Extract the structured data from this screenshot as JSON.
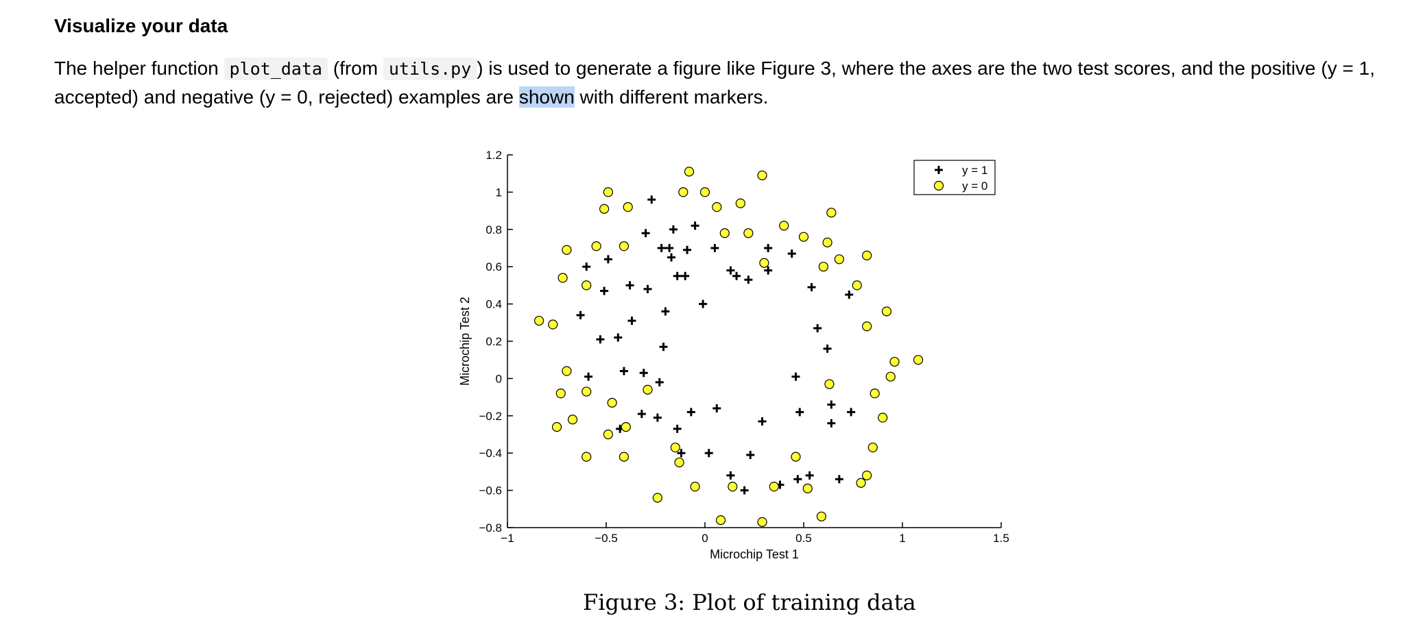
{
  "section_title": "Visualize your data",
  "paragraph": {
    "t1": "The helper function",
    "code1": "plot_data",
    "t2": "(from",
    "code2": "utils.py",
    "t3": ") is used to generate a figure like Figure 3, where the axes are the two test scores, and the positive (y = 1,",
    "t4": "accepted) and negative (y = 0, rejected) examples are",
    "selected_word": "shown",
    "t5": "with different markers."
  },
  "caption": "Figure 3: Plot of training data",
  "colors": {
    "negative_fill": "#ffff33",
    "selection": "#bcd6f5",
    "code_bg": "#f2f2f2"
  },
  "chart_data": {
    "type": "scatter",
    "title": "",
    "xlabel": "Microchip Test 1",
    "ylabel": "Microchip Test 2",
    "xlim": [
      -1,
      1.5
    ],
    "ylim": [
      -0.8,
      1.2
    ],
    "xticks": [
      -1,
      -0.5,
      0,
      0.5,
      1,
      1.5
    ],
    "xtick_labels": [
      "−1",
      "−0.5",
      "0",
      "0.5",
      "1",
      "1.5"
    ],
    "yticks": [
      -0.8,
      -0.6,
      -0.4,
      -0.2,
      0,
      0.2,
      0.4,
      0.6,
      0.8,
      1,
      1.2
    ],
    "ytick_labels": [
      "−0.8",
      "−0.6",
      "−0.4",
      "−0.2",
      "0",
      "0.2",
      "0.4",
      "0.6",
      "0.8",
      "1",
      "1.2"
    ],
    "grid": false,
    "legend": "top-right",
    "series": [
      {
        "name": "y = 1",
        "marker": "plus",
        "points": [
          [
            -0.27,
            0.96
          ],
          [
            -0.3,
            0.78
          ],
          [
            -0.16,
            0.8
          ],
          [
            -0.05,
            0.82
          ],
          [
            -0.22,
            0.7
          ],
          [
            -0.18,
            0.7
          ],
          [
            -0.09,
            0.69
          ],
          [
            -0.17,
            0.65
          ],
          [
            0.05,
            0.7
          ],
          [
            0.32,
            0.7
          ],
          [
            0.44,
            0.67
          ],
          [
            -0.49,
            0.64
          ],
          [
            -0.6,
            0.6
          ],
          [
            -0.14,
            0.55
          ],
          [
            -0.1,
            0.55
          ],
          [
            0.13,
            0.58
          ],
          [
            0.16,
            0.55
          ],
          [
            0.22,
            0.53
          ],
          [
            0.32,
            0.58
          ],
          [
            -0.38,
            0.5
          ],
          [
            -0.51,
            0.47
          ],
          [
            -0.29,
            0.48
          ],
          [
            0.54,
            0.49
          ],
          [
            0.73,
            0.45
          ],
          [
            -0.01,
            0.4
          ],
          [
            -0.2,
            0.36
          ],
          [
            -0.63,
            0.34
          ],
          [
            -0.37,
            0.31
          ],
          [
            0.57,
            0.27
          ],
          [
            -0.53,
            0.21
          ],
          [
            -0.44,
            0.22
          ],
          [
            -0.21,
            0.17
          ],
          [
            0.62,
            0.16
          ],
          [
            -0.59,
            0.01
          ],
          [
            -0.41,
            0.04
          ],
          [
            -0.31,
            0.03
          ],
          [
            -0.23,
            -0.02
          ],
          [
            0.46,
            0.01
          ],
          [
            0.64,
            -0.14
          ],
          [
            -0.32,
            -0.19
          ],
          [
            -0.24,
            -0.21
          ],
          [
            -0.07,
            -0.18
          ],
          [
            0.06,
            -0.16
          ],
          [
            0.48,
            -0.18
          ],
          [
            0.74,
            -0.18
          ],
          [
            0.29,
            -0.23
          ],
          [
            0.64,
            -0.24
          ],
          [
            -0.43,
            -0.27
          ],
          [
            -0.14,
            -0.27
          ],
          [
            -0.12,
            -0.4
          ],
          [
            0.02,
            -0.4
          ],
          [
            0.23,
            -0.41
          ],
          [
            0.13,
            -0.52
          ],
          [
            0.47,
            -0.54
          ],
          [
            0.53,
            -0.52
          ],
          [
            0.68,
            -0.54
          ],
          [
            0.2,
            -0.6
          ],
          [
            0.38,
            -0.57
          ]
        ]
      },
      {
        "name": "y = 0",
        "marker": "circle",
        "points": [
          [
            -0.08,
            1.11
          ],
          [
            0.29,
            1.09
          ],
          [
            -0.49,
            1.0
          ],
          [
            -0.11,
            1.0
          ],
          [
            0,
            1.0
          ],
          [
            -0.51,
            0.91
          ],
          [
            -0.39,
            0.92
          ],
          [
            0.06,
            0.92
          ],
          [
            0.18,
            0.94
          ],
          [
            0.64,
            0.89
          ],
          [
            0.4,
            0.82
          ],
          [
            0.1,
            0.78
          ],
          [
            0.22,
            0.78
          ],
          [
            0.5,
            0.76
          ],
          [
            0.62,
            0.73
          ],
          [
            -0.55,
            0.71
          ],
          [
            -0.41,
            0.71
          ],
          [
            -0.7,
            0.69
          ],
          [
            0.82,
            0.66
          ],
          [
            0.68,
            0.64
          ],
          [
            0.3,
            0.62
          ],
          [
            0.6,
            0.6
          ],
          [
            -0.72,
            0.54
          ],
          [
            0.77,
            0.5
          ],
          [
            -0.6,
            0.5
          ],
          [
            0.92,
            0.36
          ],
          [
            -0.84,
            0.31
          ],
          [
            -0.77,
            0.29
          ],
          [
            0.82,
            0.28
          ],
          [
            0.96,
            0.09
          ],
          [
            1.08,
            0.1
          ],
          [
            0.94,
            0.01
          ],
          [
            -0.7,
            0.04
          ],
          [
            0.63,
            -0.03
          ],
          [
            -0.29,
            -0.06
          ],
          [
            -0.73,
            -0.08
          ],
          [
            -0.6,
            -0.07
          ],
          [
            0.86,
            -0.08
          ],
          [
            -0.47,
            -0.13
          ],
          [
            0.9,
            -0.21
          ],
          [
            -0.67,
            -0.22
          ],
          [
            -0.75,
            -0.26
          ],
          [
            -0.4,
            -0.26
          ],
          [
            -0.49,
            -0.3
          ],
          [
            -0.15,
            -0.37
          ],
          [
            0.85,
            -0.37
          ],
          [
            -0.6,
            -0.42
          ],
          [
            -0.41,
            -0.42
          ],
          [
            0.46,
            -0.42
          ],
          [
            -0.13,
            -0.45
          ],
          [
            0.82,
            -0.52
          ],
          [
            -0.24,
            -0.64
          ],
          [
            -0.05,
            -0.58
          ],
          [
            0.14,
            -0.58
          ],
          [
            0.35,
            -0.58
          ],
          [
            0.52,
            -0.59
          ],
          [
            0.79,
            -0.56
          ],
          [
            0.08,
            -0.76
          ],
          [
            0.29,
            -0.77
          ],
          [
            0.59,
            -0.74
          ]
        ]
      }
    ]
  }
}
